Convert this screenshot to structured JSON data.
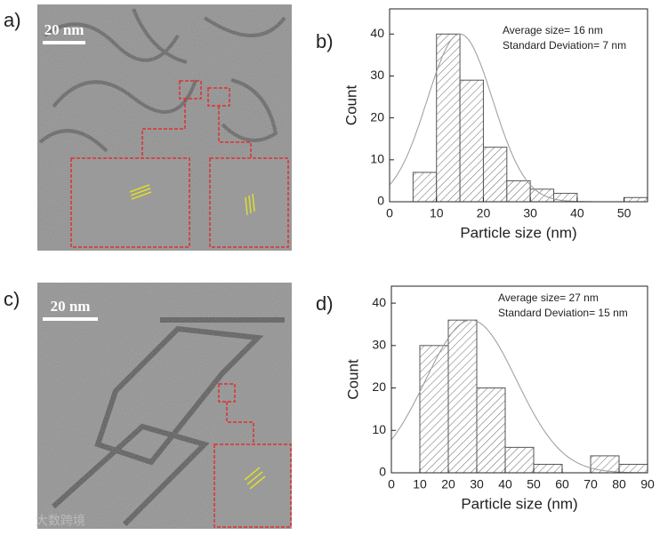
{
  "panel_labels": [
    "a)",
    "b)",
    "c)",
    "d)"
  ],
  "scale_bars": [
    "20 nm",
    "20 nm"
  ],
  "watermark": "大数跨境",
  "chart_data": [
    {
      "type": "histogram",
      "x_label": "Particle size (nm)",
      "y_label": "Count",
      "annotations": [
        "Average size= 16 nm",
        "Standard Deviation= 7 nm"
      ],
      "bins": [
        5,
        10,
        15,
        20,
        25,
        30,
        35,
        40,
        45,
        50,
        55
      ],
      "values": [
        7,
        40,
        29,
        13,
        5,
        3,
        2,
        0,
        0,
        1
      ],
      "fit": {
        "center": 15,
        "sd": 7,
        "peak": 40
      },
      "xlim": [
        0,
        55
      ],
      "xticks": [
        0,
        10,
        20,
        30,
        40,
        50
      ],
      "ylim": [
        0,
        46
      ],
      "yticks": [
        0,
        10,
        20,
        30,
        40
      ],
      "color": "#555555"
    },
    {
      "type": "histogram",
      "x_label": "Particle size (nm)",
      "y_label": "Count",
      "annotations": [
        "Average size= 27 nm",
        "Standard Deviation= 15 nm"
      ],
      "bins": [
        10,
        20,
        30,
        40,
        50,
        60,
        70,
        80,
        90
      ],
      "values": [
        30,
        36,
        20,
        6,
        2,
        0,
        4,
        2
      ],
      "fit": {
        "center": 28,
        "sd": 16,
        "peak": 36
      },
      "xlim": [
        0,
        90
      ],
      "xticks": [
        0,
        10,
        20,
        30,
        40,
        50,
        60,
        70,
        80,
        90
      ],
      "ylim": [
        0,
        44
      ],
      "yticks": [
        0,
        10,
        20,
        30,
        40
      ],
      "color": "#555555"
    }
  ]
}
